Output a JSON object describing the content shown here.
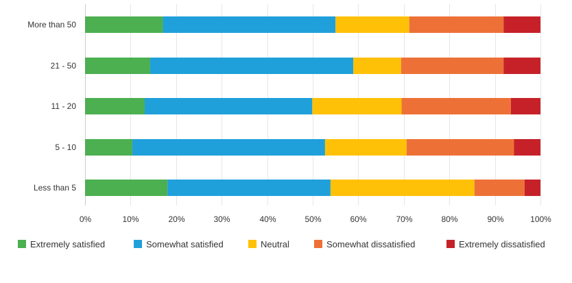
{
  "chart_data": {
    "type": "bar",
    "orientation": "horizontal",
    "stacked": "percent",
    "categories": [
      "More than 50",
      "21 - 50",
      "11 - 20",
      "5 - 10",
      "Less than 5"
    ],
    "series": [
      {
        "name": "Extremely satisfied",
        "color": "#4caf50",
        "values": [
          17.1,
          14.3,
          13.1,
          10.4,
          18.1
        ]
      },
      {
        "name": "Somewhat satisfied",
        "color": "#1fa0da",
        "values": [
          37.9,
          44.6,
          36.8,
          42.3,
          35.8
        ]
      },
      {
        "name": "Neutral",
        "color": "#ffc107",
        "values": [
          16.2,
          10.5,
          19.6,
          17.9,
          31.6
        ]
      },
      {
        "name": "Somewhat dissatisfied",
        "color": "#ed7137",
        "values": [
          20.7,
          22.5,
          24.0,
          23.6,
          11.0
        ]
      },
      {
        "name": "Extremely dissatisfied",
        "color": "#c62128",
        "values": [
          8.1,
          8.1,
          6.5,
          5.8,
          3.5
        ]
      }
    ],
    "x_ticks": [
      "0%",
      "10%",
      "20%",
      "30%",
      "40%",
      "50%",
      "60%",
      "70%",
      "80%",
      "90%",
      "100%"
    ],
    "xlim": [
      0,
      100
    ],
    "grid": true,
    "legend": "bottom"
  }
}
